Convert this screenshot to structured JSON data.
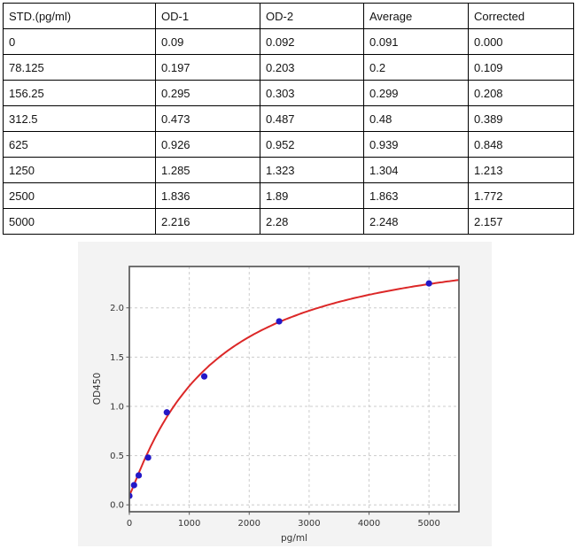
{
  "table": {
    "headers": [
      "STD.(pg/ml)",
      "OD-1",
      "OD-2",
      "Average",
      "Corrected"
    ],
    "rows": [
      [
        "0",
        "0.09",
        "0.092",
        "0.091",
        "0.000"
      ],
      [
        "78.125",
        "0.197",
        "0.203",
        "0.2",
        "0.109"
      ],
      [
        "156.25",
        "0.295",
        "0.303",
        "0.299",
        "0.208"
      ],
      [
        "312.5",
        "0.473",
        "0.487",
        "0.48",
        "0.389"
      ],
      [
        "625",
        "0.926",
        "0.952",
        "0.939",
        "0.848"
      ],
      [
        "1250",
        "1.285",
        "1.323",
        "1.304",
        "1.213"
      ],
      [
        "2500",
        "1.836",
        "1.89",
        "1.863",
        "1.772"
      ],
      [
        "5000",
        "2.216",
        "2.28",
        "2.248",
        "2.157"
      ]
    ]
  },
  "chart_data": {
    "type": "scatter",
    "title": "",
    "xlabel": "pg/ml",
    "ylabel": "OD450",
    "x": [
      0,
      78.125,
      156.25,
      312.5,
      625,
      1250,
      2500,
      5000
    ],
    "y": [
      0.091,
      0.2,
      0.299,
      0.48,
      0.939,
      1.304,
      1.863,
      2.248
    ],
    "xticks": [
      0,
      1000,
      2000,
      3000,
      4000,
      5000
    ],
    "yticks": [
      0.0,
      0.5,
      1.0,
      1.5,
      2.0
    ],
    "xlim": [
      0,
      5500
    ],
    "ylim": [
      -0.07,
      2.42
    ],
    "grid": true,
    "legend": "none",
    "fit_4pl": {
      "a": 0.095,
      "b": 1.1,
      "c": 1350,
      "d": 2.75
    },
    "point_color": "#2318c8",
    "curve_color": "#dc2828",
    "figure_bg": "#f3f3f3",
    "plot_bg": "#ffffff",
    "grid_color": "#cccccc",
    "spine_color": "#5a5a5a",
    "tick_label_color": "#333333"
  }
}
